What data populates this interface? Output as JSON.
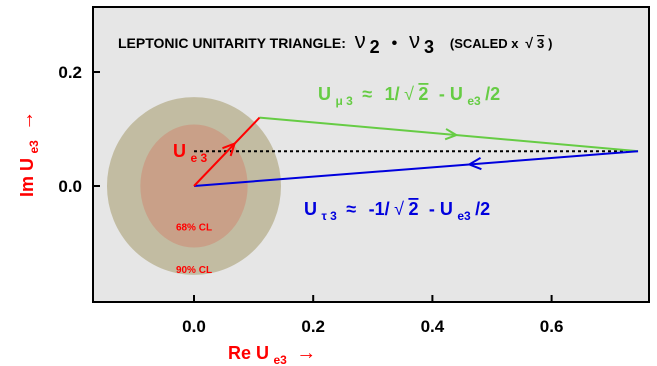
{
  "title": {
    "main": "LEPTONIC UNITARITY TRIANGLE:",
    "nu": "ν",
    "sub2": "2",
    "dot": "•",
    "sub3": "3",
    "scaled": "(SCALED x",
    "root": "√",
    "three": "3",
    "close": ")"
  },
  "axes": {
    "xlabel_main": "Re U",
    "xlabel_sub": "e3",
    "xlabel_arrow": "→",
    "ylabel_main": "Im U",
    "ylabel_sub": "e3",
    "ylabel_arrow": "→",
    "xlim": [
      -0.17,
      0.8
    ],
    "ylim": [
      -0.2,
      0.28
    ],
    "x_ticks": [
      0.0,
      0.2,
      0.4,
      0.6
    ],
    "x_tick_labels": [
      "0.0",
      "0.2",
      "0.4",
      "0.6"
    ],
    "y_ticks": [
      0.0,
      0.2
    ],
    "y_tick_labels": [
      "0.0",
      "0.2"
    ]
  },
  "colors": {
    "background": "#e6e6e6",
    "ellipse_90": "#c2bca2",
    "ellipse_68": "#c9a088",
    "red": "#ff0000",
    "green": "#66cc44",
    "blue": "#0000dd",
    "black": "#000000"
  },
  "regions": {
    "cl90": {
      "label": "90% CL",
      "center": [
        0.0,
        0.0
      ],
      "rx": 0.146,
      "ry": 0.156
    },
    "cl68": {
      "label": "68% CL",
      "center": [
        0.0,
        0.0
      ],
      "rx": 0.09,
      "ry": 0.108
    }
  },
  "points": {
    "origin": [
      0.0,
      0.0
    ],
    "ue3": [
      0.11,
      0.12
    ],
    "apex": [
      0.745,
      0.061
    ]
  },
  "labels": {
    "ue3": {
      "main": "U",
      "sub": "e 3"
    },
    "umu3": {
      "main": "U",
      "sub": "μ 3",
      "approx": "≈",
      "rest1": "1/",
      "root": "√",
      "two": "2",
      "minus": "- U",
      "sub2": "e3",
      "tail": "/2"
    },
    "utau3": {
      "main": "U",
      "sub": "τ 3",
      "approx": "≈",
      "rest1": "-1/",
      "root": "√",
      "two": "2",
      "minus": "- U",
      "sub2": "e3",
      "tail": "/2"
    }
  }
}
